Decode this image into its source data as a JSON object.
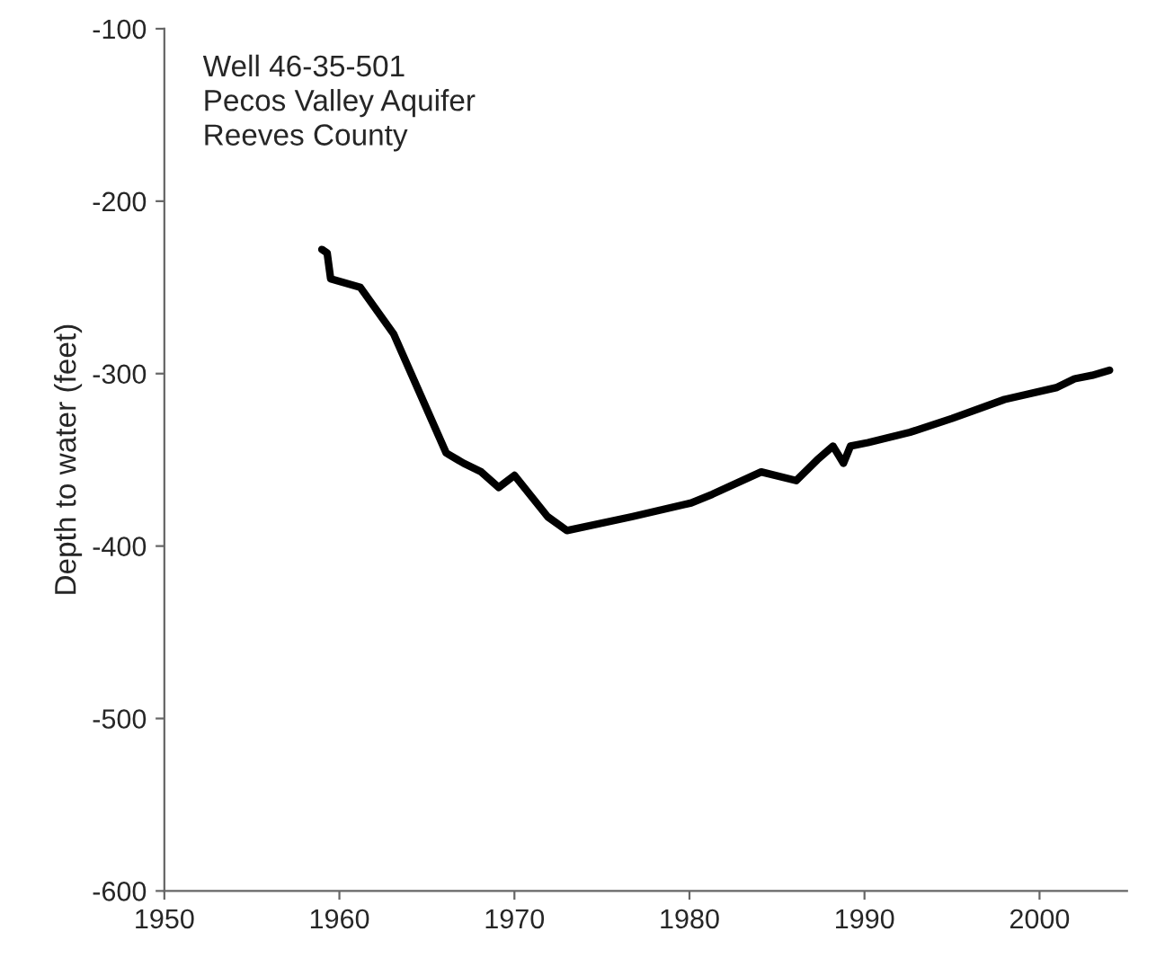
{
  "chart_data": {
    "type": "line",
    "ylabel": "Depth to water (feet)",
    "annotations": [
      "Well 46-35-501\nPecos Valley Aquifer\nReeves County"
    ],
    "x": [
      1959.0,
      1959.3,
      1959.5,
      1961.2,
      1963.1,
      1966.1,
      1967.1,
      1968.1,
      1969.1,
      1970.0,
      1971.9,
      1973.0,
      1976.7,
      1980.1,
      1981.3,
      1984.1,
      1986.1,
      1987.3,
      1988.2,
      1988.8,
      1989.2,
      1990.2,
      1992.6,
      1995.0,
      1998.0,
      2001.0,
      2002.0,
      2003.0,
      2004.0
    ],
    "series": [
      {
        "color": "#000000",
        "values": [
          -228,
          -230,
          -245,
          -250,
          -277,
          -346,
          -352,
          -357,
          -366,
          -359,
          -383,
          -391,
          -383,
          -375,
          -370,
          -357,
          -362,
          -350,
          -342,
          -352,
          -342,
          -340,
          -334,
          -326,
          -315,
          -308,
          -303,
          -301,
          -298
        ]
      }
    ],
    "xlim": [
      1950,
      2005
    ],
    "xticks": [
      1950,
      1960,
      1970,
      1980,
      1990,
      2000
    ],
    "ylim": [
      -600,
      -100
    ],
    "yticks": [
      -600,
      -500,
      -400,
      -300,
      -200,
      -100
    ],
    "grid": false,
    "legend": false,
    "marker": "none",
    "line_style": "solid"
  }
}
